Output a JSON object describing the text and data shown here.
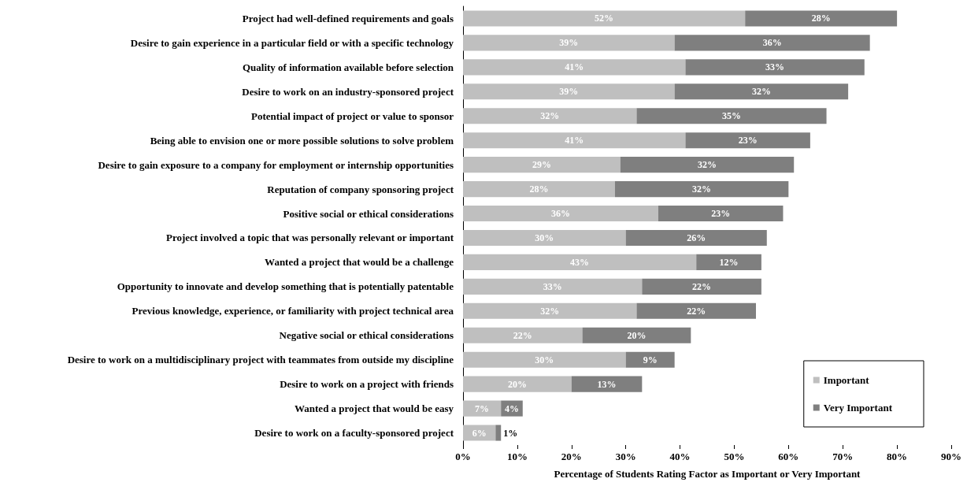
{
  "chart_data": {
    "type": "bar",
    "orientation": "horizontal",
    "stacked": true,
    "xlabel": "Percentage of Students Rating Factor as Important or Very Important",
    "categories": [
      "Project had well-defined requirements and goals",
      "Desire to gain experience in a particular field or with a specific technology",
      "Quality of information available before selection",
      "Desire to work on an industry-sponsored project",
      "Potential impact of project or value to sponsor",
      "Being able to envision one or more possible solutions to solve problem",
      "Desire to gain exposure to a company for employment or internship opportunities",
      "Reputation of company sponsoring project",
      "Positive social or ethical considerations",
      "Project involved a topic that was personally relevant or important",
      "Wanted a project that would be a challenge",
      "Opportunity to innovate and develop something that is potentially patentable",
      "Previous knowledge, experience, or familiarity with project technical area",
      "Negative social or ethical considerations",
      "Desire to work on a multidisciplinary project with teammates from outside my discipline",
      "Desire to work on a project with friends",
      "Wanted a project that would be easy",
      "Desire to work on a faculty-sponsored project"
    ],
    "series": [
      {
        "name": "Important",
        "color": "#bfbfbf",
        "values": [
          52,
          39,
          41,
          39,
          32,
          41,
          29,
          28,
          36,
          30,
          43,
          33,
          32,
          22,
          30,
          20,
          7,
          6
        ],
        "value_labels": [
          "52%",
          "39%",
          "41%",
          "39%",
          "32%",
          "41%",
          "29%",
          "28%",
          "36%",
          "30%",
          "43%",
          "33%",
          "32%",
          "22%",
          "30%",
          "20%",
          "7%",
          "6%"
        ]
      },
      {
        "name": "Very Important",
        "color": "#7f7f7f",
        "values": [
          28,
          36,
          33,
          32,
          35,
          23,
          32,
          32,
          23,
          26,
          12,
          22,
          22,
          20,
          9,
          13,
          4,
          1
        ],
        "value_labels": [
          "28%",
          "36%",
          "33%",
          "32%",
          "35%",
          "23%",
          "32%",
          "32%",
          "23%",
          "26%",
          "12%",
          "22%",
          "22%",
          "20%",
          "9%",
          "13%",
          "4%",
          "1%"
        ]
      }
    ],
    "xlim": [
      0,
      90
    ],
    "xticks": [
      {
        "value": 0,
        "label": "0%"
      },
      {
        "value": 10,
        "label": "10%"
      },
      {
        "value": 20,
        "label": "20%"
      },
      {
        "value": 30,
        "label": "30%"
      },
      {
        "value": 40,
        "label": "40%"
      },
      {
        "value": 50,
        "label": "50%"
      },
      {
        "value": 60,
        "label": "60%"
      },
      {
        "value": 70,
        "label": "70%"
      },
      {
        "value": 80,
        "label": "80%"
      },
      {
        "value": 90,
        "label": "90%"
      }
    ],
    "grid": false,
    "legend": "bottom right"
  }
}
